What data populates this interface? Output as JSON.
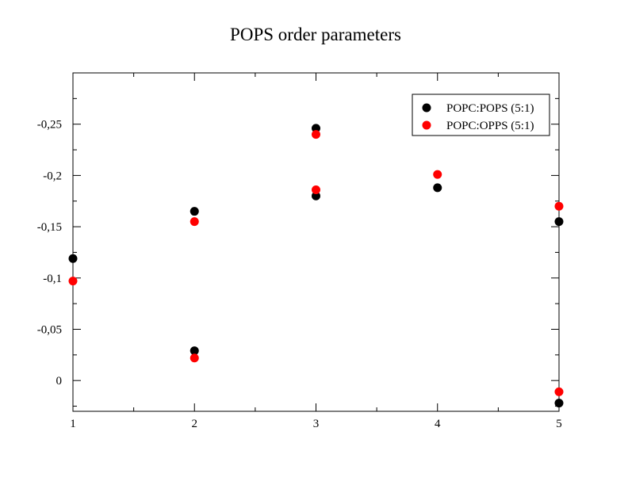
{
  "chart_data": {
    "type": "scatter",
    "title": "POPS order parameters",
    "xlabel": "",
    "ylabel": "",
    "xlim": [
      1,
      5
    ],
    "ylim": [
      0.03,
      -0.3
    ],
    "x_ticks": [
      1,
      2,
      3,
      4,
      5
    ],
    "x_tick_labels": [
      "1",
      "2",
      "3",
      "4",
      "5"
    ],
    "y_ticks": [
      0,
      -0.05,
      -0.1,
      -0.15,
      -0.2,
      -0.25
    ],
    "y_tick_labels": [
      "0",
      "-0,05",
      "-0,1",
      "-0,15",
      "-0,2",
      "-0,25"
    ],
    "grid": false,
    "legend_position": "top-right",
    "series": [
      {
        "name": "POPC:POPS (5:1)",
        "color": "#000000",
        "points": [
          {
            "x": 1,
            "y": -0.119
          },
          {
            "x": 2,
            "y": -0.165
          },
          {
            "x": 2,
            "y": -0.029
          },
          {
            "x": 3,
            "y": -0.246
          },
          {
            "x": 3,
            "y": -0.18
          },
          {
            "x": 4,
            "y": -0.188
          },
          {
            "x": 5,
            "y": -0.155
          },
          {
            "x": 5,
            "y": 0.022
          }
        ]
      },
      {
        "name": "POPC:OPPS (5:1)",
        "color": "#ff0000",
        "points": [
          {
            "x": 1,
            "y": -0.097
          },
          {
            "x": 2,
            "y": -0.155
          },
          {
            "x": 2,
            "y": -0.022
          },
          {
            "x": 3,
            "y": -0.24
          },
          {
            "x": 3,
            "y": -0.186
          },
          {
            "x": 4,
            "y": -0.201
          },
          {
            "x": 5,
            "y": -0.17
          },
          {
            "x": 5,
            "y": 0.011
          }
        ]
      }
    ]
  }
}
